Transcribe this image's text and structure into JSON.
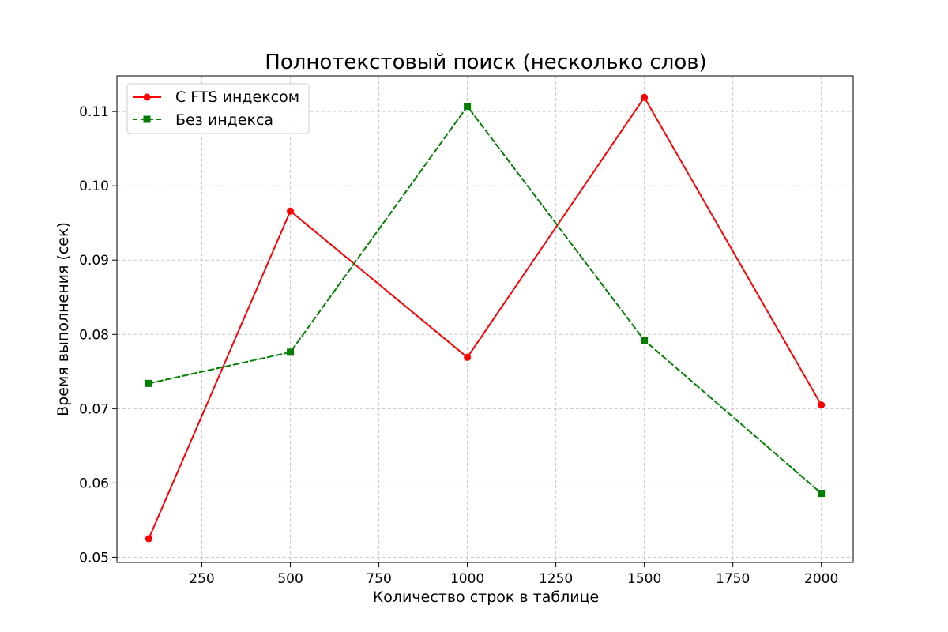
{
  "chart_data": {
    "type": "line",
    "title": "Полнотекстовый поиск (несколько слов)",
    "xlabel": "Количество строк в таблице",
    "ylabel": "Время выполнения (сек)",
    "x": [
      100,
      500,
      1000,
      1500,
      2000
    ],
    "xlim": [
      10,
      2090
    ],
    "ylim": [
      0.0493,
      0.1148
    ],
    "xticks": [
      250,
      500,
      750,
      1000,
      1250,
      1500,
      1750,
      2000
    ],
    "yticks": [
      0.05,
      0.06,
      0.07,
      0.08,
      0.09,
      0.1,
      0.11
    ],
    "ytick_labels": [
      "0.05",
      "0.06",
      "0.07",
      "0.08",
      "0.09",
      "0.10",
      "0.11"
    ],
    "grid": true,
    "legend_position": "top-left",
    "series": [
      {
        "name": "С FTS индексом",
        "values": [
          0.0525,
          0.0966,
          0.0769,
          0.1119,
          0.0705
        ],
        "color": "#ff0000",
        "marker": "circle",
        "line_style": "solid"
      },
      {
        "name": "Без индекса",
        "values": [
          0.0734,
          0.0776,
          0.1107,
          0.0792,
          0.0586
        ],
        "color": "#008000",
        "marker": "square",
        "line_style": "dashed"
      }
    ]
  }
}
